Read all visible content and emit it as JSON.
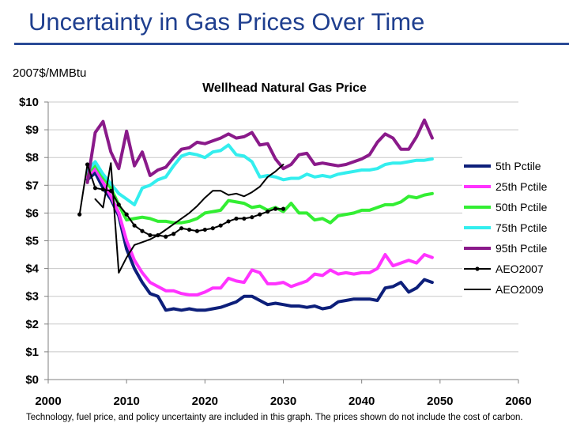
{
  "slide": {
    "title": "Uncertainty in Gas Prices Over Time",
    "units": "2007$/MMBtu",
    "footnote": "Technology, fuel price, and policy uncertainty are included in this graph. The prices shown do not include the cost of carbon."
  },
  "chart_data": {
    "type": "line",
    "title": "Wellhead Natural Gas Price",
    "xlabel": "",
    "ylabel": "2007$/MMBtu",
    "xlim": [
      2000,
      2060
    ],
    "ylim": [
      0,
      10
    ],
    "xticks": [
      2000,
      2010,
      2020,
      2030,
      2040,
      2050,
      2060
    ],
    "yticks": [
      0,
      1,
      2,
      3,
      4,
      5,
      6,
      7,
      8,
      9,
      10
    ],
    "ytick_labels": [
      "$0",
      "$1",
      "$2",
      "$3",
      "$4",
      "$5",
      "$6",
      "$7",
      "$8",
      "$9",
      "$10"
    ],
    "grid": "horizontal",
    "legend": "right",
    "series": [
      {
        "name": "5th Pctile",
        "color": "#0d1f7a",
        "marker": false,
        "x": [
          2005,
          2006,
          2007,
          2008,
          2009,
          2010,
          2011,
          2012,
          2013,
          2014,
          2015,
          2016,
          2017,
          2018,
          2019,
          2020,
          2021,
          2022,
          2023,
          2024,
          2025,
          2026,
          2027,
          2028,
          2029,
          2030,
          2031,
          2032,
          2033,
          2034,
          2035,
          2036,
          2037,
          2038,
          2039,
          2040,
          2041,
          2042,
          2043,
          2044,
          2045,
          2046,
          2047,
          2048,
          2049
        ],
        "y": [
          7.2,
          7.45,
          6.9,
          6.5,
          5.9,
          4.7,
          4.0,
          3.5,
          3.1,
          3.0,
          2.5,
          2.55,
          2.5,
          2.55,
          2.5,
          2.5,
          2.55,
          2.6,
          2.7,
          2.8,
          3.0,
          3.0,
          2.85,
          2.7,
          2.75,
          2.7,
          2.65,
          2.65,
          2.6,
          2.65,
          2.55,
          2.6,
          2.8,
          2.85,
          2.9,
          2.9,
          2.9,
          2.85,
          3.3,
          3.35,
          3.5,
          3.15,
          3.3,
          3.6,
          3.5
        ]
      },
      {
        "name": "25th Pctile",
        "color": "#ff33ff",
        "marker": false,
        "x": [
          2005,
          2006,
          2007,
          2008,
          2009,
          2010,
          2011,
          2012,
          2013,
          2014,
          2015,
          2016,
          2017,
          2018,
          2019,
          2020,
          2021,
          2022,
          2023,
          2024,
          2025,
          2026,
          2027,
          2028,
          2029,
          2030,
          2031,
          2032,
          2033,
          2034,
          2035,
          2036,
          2037,
          2038,
          2039,
          2040,
          2041,
          2042,
          2043,
          2044,
          2045,
          2046,
          2047,
          2048,
          2049
        ],
        "y": [
          7.3,
          7.6,
          7.1,
          6.6,
          6.0,
          5.0,
          4.3,
          3.85,
          3.5,
          3.35,
          3.2,
          3.2,
          3.1,
          3.05,
          3.05,
          3.15,
          3.3,
          3.3,
          3.65,
          3.55,
          3.5,
          3.95,
          3.85,
          3.45,
          3.45,
          3.5,
          3.35,
          3.45,
          3.55,
          3.8,
          3.75,
          3.95,
          3.8,
          3.85,
          3.8,
          3.85,
          3.85,
          4.0,
          4.5,
          4.1,
          4.2,
          4.3,
          4.2,
          4.5,
          4.4
        ]
      },
      {
        "name": "50th Pctile",
        "color": "#33ee33",
        "marker": false,
        "x": [
          2005,
          2006,
          2007,
          2008,
          2009,
          2010,
          2011,
          2012,
          2013,
          2014,
          2015,
          2016,
          2017,
          2018,
          2019,
          2020,
          2021,
          2022,
          2023,
          2024,
          2025,
          2026,
          2027,
          2028,
          2029,
          2030,
          2031,
          2032,
          2033,
          2034,
          2035,
          2036,
          2037,
          2038,
          2039,
          2040,
          2041,
          2042,
          2043,
          2044,
          2045,
          2046,
          2047,
          2048,
          2049
        ],
        "y": [
          7.4,
          7.75,
          7.3,
          6.9,
          6.3,
          5.75,
          5.8,
          5.85,
          5.8,
          5.7,
          5.7,
          5.65,
          5.65,
          5.7,
          5.8,
          6.0,
          6.05,
          6.1,
          6.45,
          6.4,
          6.35,
          6.2,
          6.25,
          6.1,
          6.2,
          6.05,
          6.35,
          6.0,
          6.0,
          5.75,
          5.8,
          5.65,
          5.9,
          5.95,
          6.0,
          6.1,
          6.1,
          6.2,
          6.3,
          6.3,
          6.4,
          6.6,
          6.55,
          6.65,
          6.7
        ]
      },
      {
        "name": "75th Pctile",
        "color": "#33eeee",
        "marker": false,
        "x": [
          2005,
          2006,
          2007,
          2008,
          2009,
          2010,
          2011,
          2012,
          2013,
          2014,
          2015,
          2016,
          2017,
          2018,
          2019,
          2020,
          2021,
          2022,
          2023,
          2024,
          2025,
          2026,
          2027,
          2028,
          2029,
          2030,
          2031,
          2032,
          2033,
          2034,
          2035,
          2036,
          2037,
          2038,
          2039,
          2040,
          2041,
          2042,
          2043,
          2044,
          2045,
          2046,
          2047,
          2048,
          2049
        ],
        "y": [
          7.5,
          7.85,
          7.4,
          7.05,
          6.7,
          6.5,
          6.3,
          6.9,
          7.0,
          7.2,
          7.3,
          7.7,
          8.05,
          8.15,
          8.1,
          8.0,
          8.2,
          8.25,
          8.45,
          8.1,
          8.05,
          7.85,
          7.3,
          7.35,
          7.3,
          7.2,
          7.25,
          7.25,
          7.4,
          7.3,
          7.35,
          7.3,
          7.4,
          7.45,
          7.5,
          7.55,
          7.55,
          7.6,
          7.75,
          7.8,
          7.8,
          7.85,
          7.9,
          7.9,
          7.95
        ]
      },
      {
        "name": "95th Pctile",
        "color": "#8a1a8a",
        "marker": false,
        "x": [
          2005,
          2006,
          2007,
          2008,
          2009,
          2010,
          2011,
          2012,
          2013,
          2014,
          2015,
          2016,
          2017,
          2018,
          2019,
          2020,
          2021,
          2022,
          2023,
          2024,
          2025,
          2026,
          2027,
          2028,
          2029,
          2030,
          2031,
          2032,
          2033,
          2034,
          2035,
          2036,
          2037,
          2038,
          2039,
          2040,
          2041,
          2042,
          2043,
          2044,
          2045,
          2046,
          2047,
          2048,
          2049
        ],
        "y": [
          7.1,
          8.9,
          9.3,
          8.2,
          7.6,
          8.95,
          7.7,
          8.2,
          7.35,
          7.55,
          7.65,
          8.0,
          8.3,
          8.35,
          8.55,
          8.5,
          8.6,
          8.7,
          8.85,
          8.7,
          8.75,
          8.9,
          8.45,
          8.5,
          7.95,
          7.6,
          7.75,
          8.1,
          8.15,
          7.75,
          7.8,
          7.75,
          7.7,
          7.75,
          7.85,
          7.95,
          8.1,
          8.55,
          8.85,
          8.7,
          8.3,
          8.3,
          8.75,
          9.35,
          8.7
        ]
      },
      {
        "name": "AEO2007",
        "color": "#000000",
        "marker": true,
        "x": [
          2004,
          2005,
          2006,
          2007,
          2008,
          2009,
          2010,
          2011,
          2012,
          2013,
          2014,
          2015,
          2016,
          2017,
          2018,
          2019,
          2020,
          2021,
          2022,
          2023,
          2024,
          2025,
          2026,
          2027,
          2028,
          2029,
          2030
        ],
        "y": [
          5.95,
          7.75,
          6.9,
          6.85,
          6.8,
          6.3,
          5.95,
          5.55,
          5.35,
          5.2,
          5.2,
          5.15,
          5.25,
          5.45,
          5.4,
          5.35,
          5.4,
          5.45,
          5.55,
          5.7,
          5.8,
          5.8,
          5.85,
          5.95,
          6.05,
          6.15,
          6.15
        ]
      },
      {
        "name": "AEO2009",
        "color": "#000000",
        "marker": false,
        "x": [
          2006,
          2007,
          2008,
          2009,
          2010,
          2011,
          2012,
          2013,
          2014,
          2015,
          2016,
          2017,
          2018,
          2019,
          2020,
          2021,
          2022,
          2023,
          2024,
          2025,
          2026,
          2027,
          2028,
          2029,
          2030
        ],
        "y": [
          6.5,
          6.2,
          7.8,
          3.85,
          4.4,
          4.85,
          4.95,
          5.05,
          5.2,
          5.4,
          5.6,
          5.8,
          6.0,
          6.25,
          6.55,
          6.8,
          6.8,
          6.65,
          6.7,
          6.6,
          6.75,
          6.95,
          7.3,
          7.5,
          7.75
        ]
      }
    ]
  }
}
